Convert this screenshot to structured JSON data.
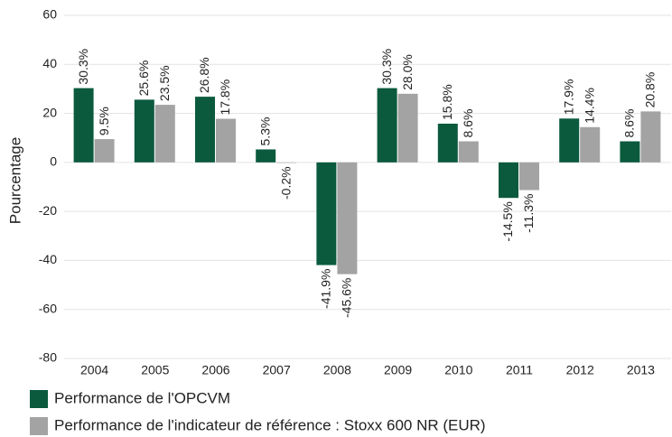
{
  "chart_data": {
    "type": "bar",
    "y_label": "Pourcentage",
    "categories": [
      "2004",
      "2005",
      "2006",
      "2007",
      "2008",
      "2009",
      "2010",
      "2011",
      "2012",
      "2013"
    ],
    "series": [
      {
        "name": "Performance de l'OPCVM",
        "color": "#0b5a3e",
        "values": [
          30.3,
          25.6,
          26.8,
          5.3,
          -41.9,
          30.3,
          15.8,
          -14.5,
          17.9,
          8.6
        ],
        "value_labels": [
          "30.3%",
          "25.6%",
          "26.8%",
          "5.3%",
          "-41.9%",
          "30.3%",
          "15.8%",
          "-14.5%",
          "17.9%",
          "8.6%"
        ]
      },
      {
        "name": "Performance de l'indicateur de référence : Stoxx 600 NR (EUR)",
        "color": "#a3a3a3",
        "values": [
          9.5,
          23.5,
          17.8,
          -0.2,
          -45.6,
          28.0,
          8.6,
          -11.3,
          14.4,
          20.8
        ],
        "value_labels": [
          "9.5%",
          "23.5%",
          "17.8%",
          "-0.2%",
          "-45.6%",
          "28.0%",
          "8.6%",
          "-11.3%",
          "14.4%",
          "20.8%"
        ]
      }
    ],
    "ylim": [
      -80,
      60
    ],
    "yticks": [
      -80,
      -60,
      -40,
      -20,
      0,
      20,
      40,
      60
    ],
    "grid": true
  }
}
